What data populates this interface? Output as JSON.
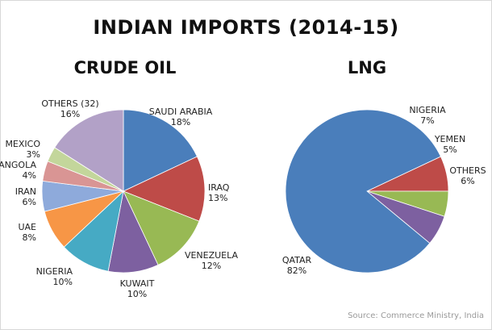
{
  "title": "INDIAN IMPORTS (2014-15)",
  "source": "Source: Commerce Ministry, India",
  "chart_data": [
    {
      "type": "pie",
      "title": "CRUDE OIL",
      "slices": [
        {
          "label": "SAUDI ARABIA",
          "value": 18,
          "value_label": "18%",
          "color": "#4a7ebb"
        },
        {
          "label": "IRAQ",
          "value": 13,
          "value_label": "13%",
          "color": "#be4b48"
        },
        {
          "label": "VENEZUELA",
          "value": 12,
          "value_label": "12%",
          "color": "#98b954"
        },
        {
          "label": "KUWAIT",
          "value": 10,
          "value_label": "10%",
          "color": "#7d60a0"
        },
        {
          "label": "NIGERIA",
          "value": 10,
          "value_label": "10%",
          "color": "#46aac4"
        },
        {
          "label": "UAE",
          "value": 8,
          "value_label": "8%",
          "color": "#f79646"
        },
        {
          "label": "IRAN",
          "value": 6,
          "value_label": "6%",
          "color": "#8eaadb"
        },
        {
          "label": "ANGOLA",
          "value": 4,
          "value_label": "4%",
          "color": "#d99594"
        },
        {
          "label": "MEXICO",
          "value": 3,
          "value_label": "3%",
          "color": "#c3d69b"
        },
        {
          "label": "OTHERS (32)",
          "value": 16,
          "value_label": "16%",
          "color": "#b2a1c7"
        }
      ]
    },
    {
      "type": "pie",
      "title": "LNG",
      "slices": [
        {
          "label": "NIGERIA",
          "value": 7,
          "value_label": "7%",
          "color": "#be4b48"
        },
        {
          "label": "YEMEN",
          "value": 5,
          "value_label": "5%",
          "color": "#98b954"
        },
        {
          "label": "OTHERS",
          "value": 6,
          "value_label": "6%",
          "color": "#7d60a0"
        },
        {
          "label": "QATAR",
          "value": 82,
          "value_label": "82%",
          "color": "#4a7ebb"
        }
      ]
    }
  ]
}
